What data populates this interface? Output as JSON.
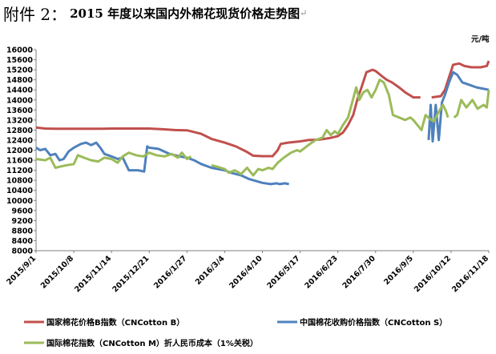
{
  "heading": {
    "lead": "附件 2：",
    "title": "2015 年度以来国内外棉花现货价格走势图",
    "mark": "↵"
  },
  "chart_data": {
    "type": "line",
    "title": "2015 年度以来国内外棉花现货价格走势图",
    "unit": "元/吨",
    "xlabel": "",
    "ylabel": "",
    "ylim": [
      8000,
      16000
    ],
    "yticks": [
      8000,
      8400,
      8800,
      9200,
      9600,
      10000,
      10400,
      10800,
      11200,
      11600,
      12000,
      12400,
      12800,
      13200,
      13600,
      14000,
      14400,
      14800,
      15200,
      15600,
      16000
    ],
    "xlim": [
      "2015/9/1",
      "2016/11/18"
    ],
    "xticks": [
      "2015/9/1",
      "2015/10/8",
      "2015/11/14",
      "2015/12/21",
      "2016/1/27",
      "2016/3/4",
      "2016/4/10",
      "2016/5/17",
      "2016/6/23",
      "2016/7/30",
      "2016/9/5",
      "2016/10/12",
      "2016/11/18"
    ],
    "grid": false,
    "legend_position": "bottom",
    "series": [
      {
        "name": "国家棉花价格B指数（CNCotton B）",
        "color": "#c0504d",
        "points": [
          [
            "2015/9/1",
            12900
          ],
          [
            "2015/9/10",
            12860
          ],
          [
            "2015/9/20",
            12850
          ],
          [
            "2015/10/8",
            12850
          ],
          [
            "2015/11/1",
            12850
          ],
          [
            "2015/11/14",
            12860
          ],
          [
            "2015/12/1",
            12860
          ],
          [
            "2015/12/21",
            12860
          ],
          [
            "2016/1/5",
            12830
          ],
          [
            "2016/1/15",
            12800
          ],
          [
            "2016/1/27",
            12790
          ],
          [
            "2016/2/10",
            12650
          ],
          [
            "2016/2/20",
            12450
          ],
          [
            "2016/3/4",
            12300
          ],
          [
            "2016/3/15",
            12150
          ],
          [
            "2016/3/25",
            11950
          ],
          [
            "2016/4/1",
            11780
          ],
          [
            "2016/4/10",
            11760
          ],
          [
            "2016/4/20",
            11760
          ],
          [
            "2016/4/25",
            12000
          ],
          [
            "2016/4/28",
            12250
          ],
          [
            "2016/5/5",
            12300
          ],
          [
            "2016/5/17",
            12350
          ],
          [
            "2016/5/25",
            12400
          ],
          [
            "2016/6/5",
            12420
          ],
          [
            "2016/6/15",
            12480
          ],
          [
            "2016/6/23",
            12560
          ],
          [
            "2016/6/28",
            12700
          ],
          [
            "2016/7/3",
            13000
          ],
          [
            "2016/7/8",
            13400
          ],
          [
            "2016/7/12",
            14000
          ],
          [
            "2016/7/17",
            14600
          ],
          [
            "2016/7/21",
            15100
          ],
          [
            "2016/7/27",
            15200
          ],
          [
            "2016/7/30",
            15150
          ],
          [
            "2016/8/5",
            14950
          ],
          [
            "2016/8/10",
            14800
          ],
          [
            "2016/8/15",
            14700
          ],
          [
            "2016/8/22",
            14500
          ],
          [
            "2016/8/28",
            14300
          ],
          [
            "2016/9/3",
            14150
          ],
          [
            "2016/9/5",
            14100
          ],
          [
            "2016/9/12",
            14100
          ],
          [
            "2016/9/15",
            null
          ],
          [
            "2016/9/23",
            14100
          ],
          [
            "2016/10/2",
            14150
          ],
          [
            "2016/10/6",
            14400
          ],
          [
            "2016/10/10",
            14900
          ],
          [
            "2016/10/14",
            15400
          ],
          [
            "2016/10/20",
            15450
          ],
          [
            "2016/10/25",
            15350
          ],
          [
            "2016/11/1",
            15300
          ],
          [
            "2016/11/10",
            15300
          ],
          [
            "2016/11/16",
            15350
          ],
          [
            "2016/11/18",
            15550
          ]
        ]
      },
      {
        "name": "中国棉花收购价格指数（CNCotton S）",
        "color": "#4f81bd",
        "points": [
          [
            "2015/9/1",
            12100
          ],
          [
            "2015/9/5",
            12000
          ],
          [
            "2015/9/10",
            12050
          ],
          [
            "2015/9/15",
            11800
          ],
          [
            "2015/9/20",
            11850
          ],
          [
            "2015/9/24",
            11600
          ],
          [
            "2015/9/28",
            11650
          ],
          [
            "2015/10/3",
            11950
          ],
          [
            "2015/10/8",
            12100
          ],
          [
            "2015/10/15",
            12250
          ],
          [
            "2015/10/20",
            12300
          ],
          [
            "2015/10/25",
            12200
          ],
          [
            "2015/10/30",
            12300
          ],
          [
            "2015/11/3",
            12100
          ],
          [
            "2015/11/7",
            11850
          ],
          [
            "2015/11/14",
            11750
          ],
          [
            "2015/11/20",
            11650
          ],
          [
            "2015/11/25",
            11700
          ],
          [
            "2015/12/1",
            11200
          ],
          [
            "2015/12/10",
            11200
          ],
          [
            "2015/12/16",
            11150
          ],
          [
            "2015/12/19",
            12150
          ],
          [
            "2015/12/21",
            12100
          ],
          [
            "2015/12/30",
            12050
          ],
          [
            "2016/1/10",
            11850
          ],
          [
            "2016/1/20",
            11750
          ],
          [
            "2016/1/27",
            11700
          ],
          [
            "2016/2/3",
            11600
          ],
          [
            "2016/2/10",
            11450
          ],
          [
            "2016/2/20",
            11300
          ],
          [
            "2016/3/4",
            11200
          ],
          [
            "2016/3/10",
            11100
          ],
          [
            "2016/3/20",
            11000
          ],
          [
            "2016/3/28",
            10850
          ],
          [
            "2016/4/10",
            10700
          ],
          [
            "2016/4/18",
            10650
          ],
          [
            "2016/4/24",
            10680
          ],
          [
            "2016/4/27",
            10650
          ],
          [
            "2016/5/2",
            10680
          ],
          [
            "2016/5/6",
            10650
          ],
          [
            "2016/5/9",
            null
          ],
          [
            "2016/9/17",
            null
          ],
          [
            "2016/9/20",
            12400
          ],
          [
            "2016/9/22",
            13800
          ],
          [
            "2016/9/24",
            12350
          ],
          [
            "2016/9/27",
            13800
          ],
          [
            "2016/9/30",
            12400
          ],
          [
            "2016/10/3",
            13900
          ],
          [
            "2016/10/6",
            14200
          ],
          [
            "2016/10/10",
            14700
          ],
          [
            "2016/10/14",
            15100
          ],
          [
            "2016/10/18",
            15000
          ],
          [
            "2016/10/23",
            14700
          ],
          [
            "2016/10/30",
            14600
          ],
          [
            "2016/11/6",
            14500
          ],
          [
            "2016/11/12",
            14450
          ],
          [
            "2016/11/18",
            14400
          ]
        ]
      },
      {
        "name": "国际棉花指数（CNCotton M）折人民币成本（1%关税）",
        "color": "#9bbb59",
        "points": [
          [
            "2015/9/1",
            11650
          ],
          [
            "2015/9/10",
            11600
          ],
          [
            "2015/9/15",
            11700
          ],
          [
            "2015/9/20",
            11300
          ],
          [
            "2015/9/25",
            11350
          ],
          [
            "2015/10/1",
            11400
          ],
          [
            "2015/10/8",
            11450
          ],
          [
            "2015/10/12",
            11800
          ],
          [
            "2015/10/18",
            11700
          ],
          [
            "2015/10/25",
            11600
          ],
          [
            "2015/11/1",
            11550
          ],
          [
            "2015/11/7",
            11700
          ],
          [
            "2015/11/14",
            11650
          ],
          [
            "2015/11/20",
            11500
          ],
          [
            "2015/11/25",
            11750
          ],
          [
            "2015/12/1",
            11900
          ],
          [
            "2015/12/8",
            11800
          ],
          [
            "2015/12/15",
            11750
          ],
          [
            "2015/12/21",
            11900
          ],
          [
            "2015/12/28",
            11800
          ],
          [
            "2016/1/5",
            11750
          ],
          [
            "2016/1/12",
            11850
          ],
          [
            "2016/1/18",
            11700
          ],
          [
            "2016/1/22",
            11900
          ],
          [
            "2016/1/27",
            11650
          ],
          [
            "2016/1/31",
            11750
          ],
          [
            "2016/2/5",
            null
          ],
          [
            "2016/2/18",
            null
          ],
          [
            "2016/2/20",
            11400
          ],
          [
            "2016/2/25",
            11350
          ],
          [
            "2016/3/4",
            11250
          ],
          [
            "2016/3/8",
            11100
          ],
          [
            "2016/3/14",
            11200
          ],
          [
            "2016/3/20",
            11050
          ],
          [
            "2016/3/26",
            11300
          ],
          [
            "2016/4/1",
            11000
          ],
          [
            "2016/4/6",
            11250
          ],
          [
            "2016/4/10",
            11200
          ],
          [
            "2016/4/16",
            11300
          ],
          [
            "2016/4/20",
            11250
          ],
          [
            "2016/4/25",
            11500
          ],
          [
            "2016/5/1",
            11700
          ],
          [
            "2016/5/8",
            11900
          ],
          [
            "2016/5/14",
            12000
          ],
          [
            "2016/5/17",
            11950
          ],
          [
            "2016/5/25",
            12200
          ],
          [
            "2016/6/1",
            12400
          ],
          [
            "2016/6/8",
            12500
          ],
          [
            "2016/6/12",
            12800
          ],
          [
            "2016/6/16",
            12600
          ],
          [
            "2016/6/20",
            12750
          ],
          [
            "2016/6/23",
            12650
          ],
          [
            "2016/6/28",
            13000
          ],
          [
            "2016/7/3",
            13300
          ],
          [
            "2016/7/7",
            13900
          ],
          [
            "2016/7/11",
            14500
          ],
          [
            "2016/7/14",
            14000
          ],
          [
            "2016/7/18",
            14300
          ],
          [
            "2016/7/22",
            14400
          ],
          [
            "2016/7/26",
            14100
          ],
          [
            "2016/7/30",
            14400
          ],
          [
            "2016/8/3",
            14800
          ],
          [
            "2016/8/7",
            14700
          ],
          [
            "2016/8/12",
            14200
          ],
          [
            "2016/8/16",
            13400
          ],
          [
            "2016/8/22",
            13300
          ],
          [
            "2016/8/28",
            13200
          ],
          [
            "2016/9/2",
            13300
          ],
          [
            "2016/9/5",
            13200
          ],
          [
            "2016/9/9",
            13000
          ],
          [
            "2016/9/13",
            12800
          ],
          [
            "2016/9/17",
            13400
          ],
          [
            "2016/9/21",
            13250
          ],
          [
            "2016/9/25",
            13150
          ],
          [
            "2016/10/1",
            13600
          ],
          [
            "2016/10/4",
            13800
          ],
          [
            "2016/10/7",
            13550
          ],
          [
            "2016/10/9",
            13300
          ],
          [
            "2016/10/10",
            null
          ],
          [
            "2016/10/14",
            null
          ],
          [
            "2016/10/15",
            13300
          ],
          [
            "2016/10/18",
            13400
          ],
          [
            "2016/10/22",
            14000
          ],
          [
            "2016/10/27",
            13700
          ],
          [
            "2016/11/2",
            14000
          ],
          [
            "2016/11/7",
            13650
          ],
          [
            "2016/11/13",
            13800
          ],
          [
            "2016/11/16",
            13700
          ],
          [
            "2016/11/18",
            14400
          ]
        ]
      }
    ]
  }
}
